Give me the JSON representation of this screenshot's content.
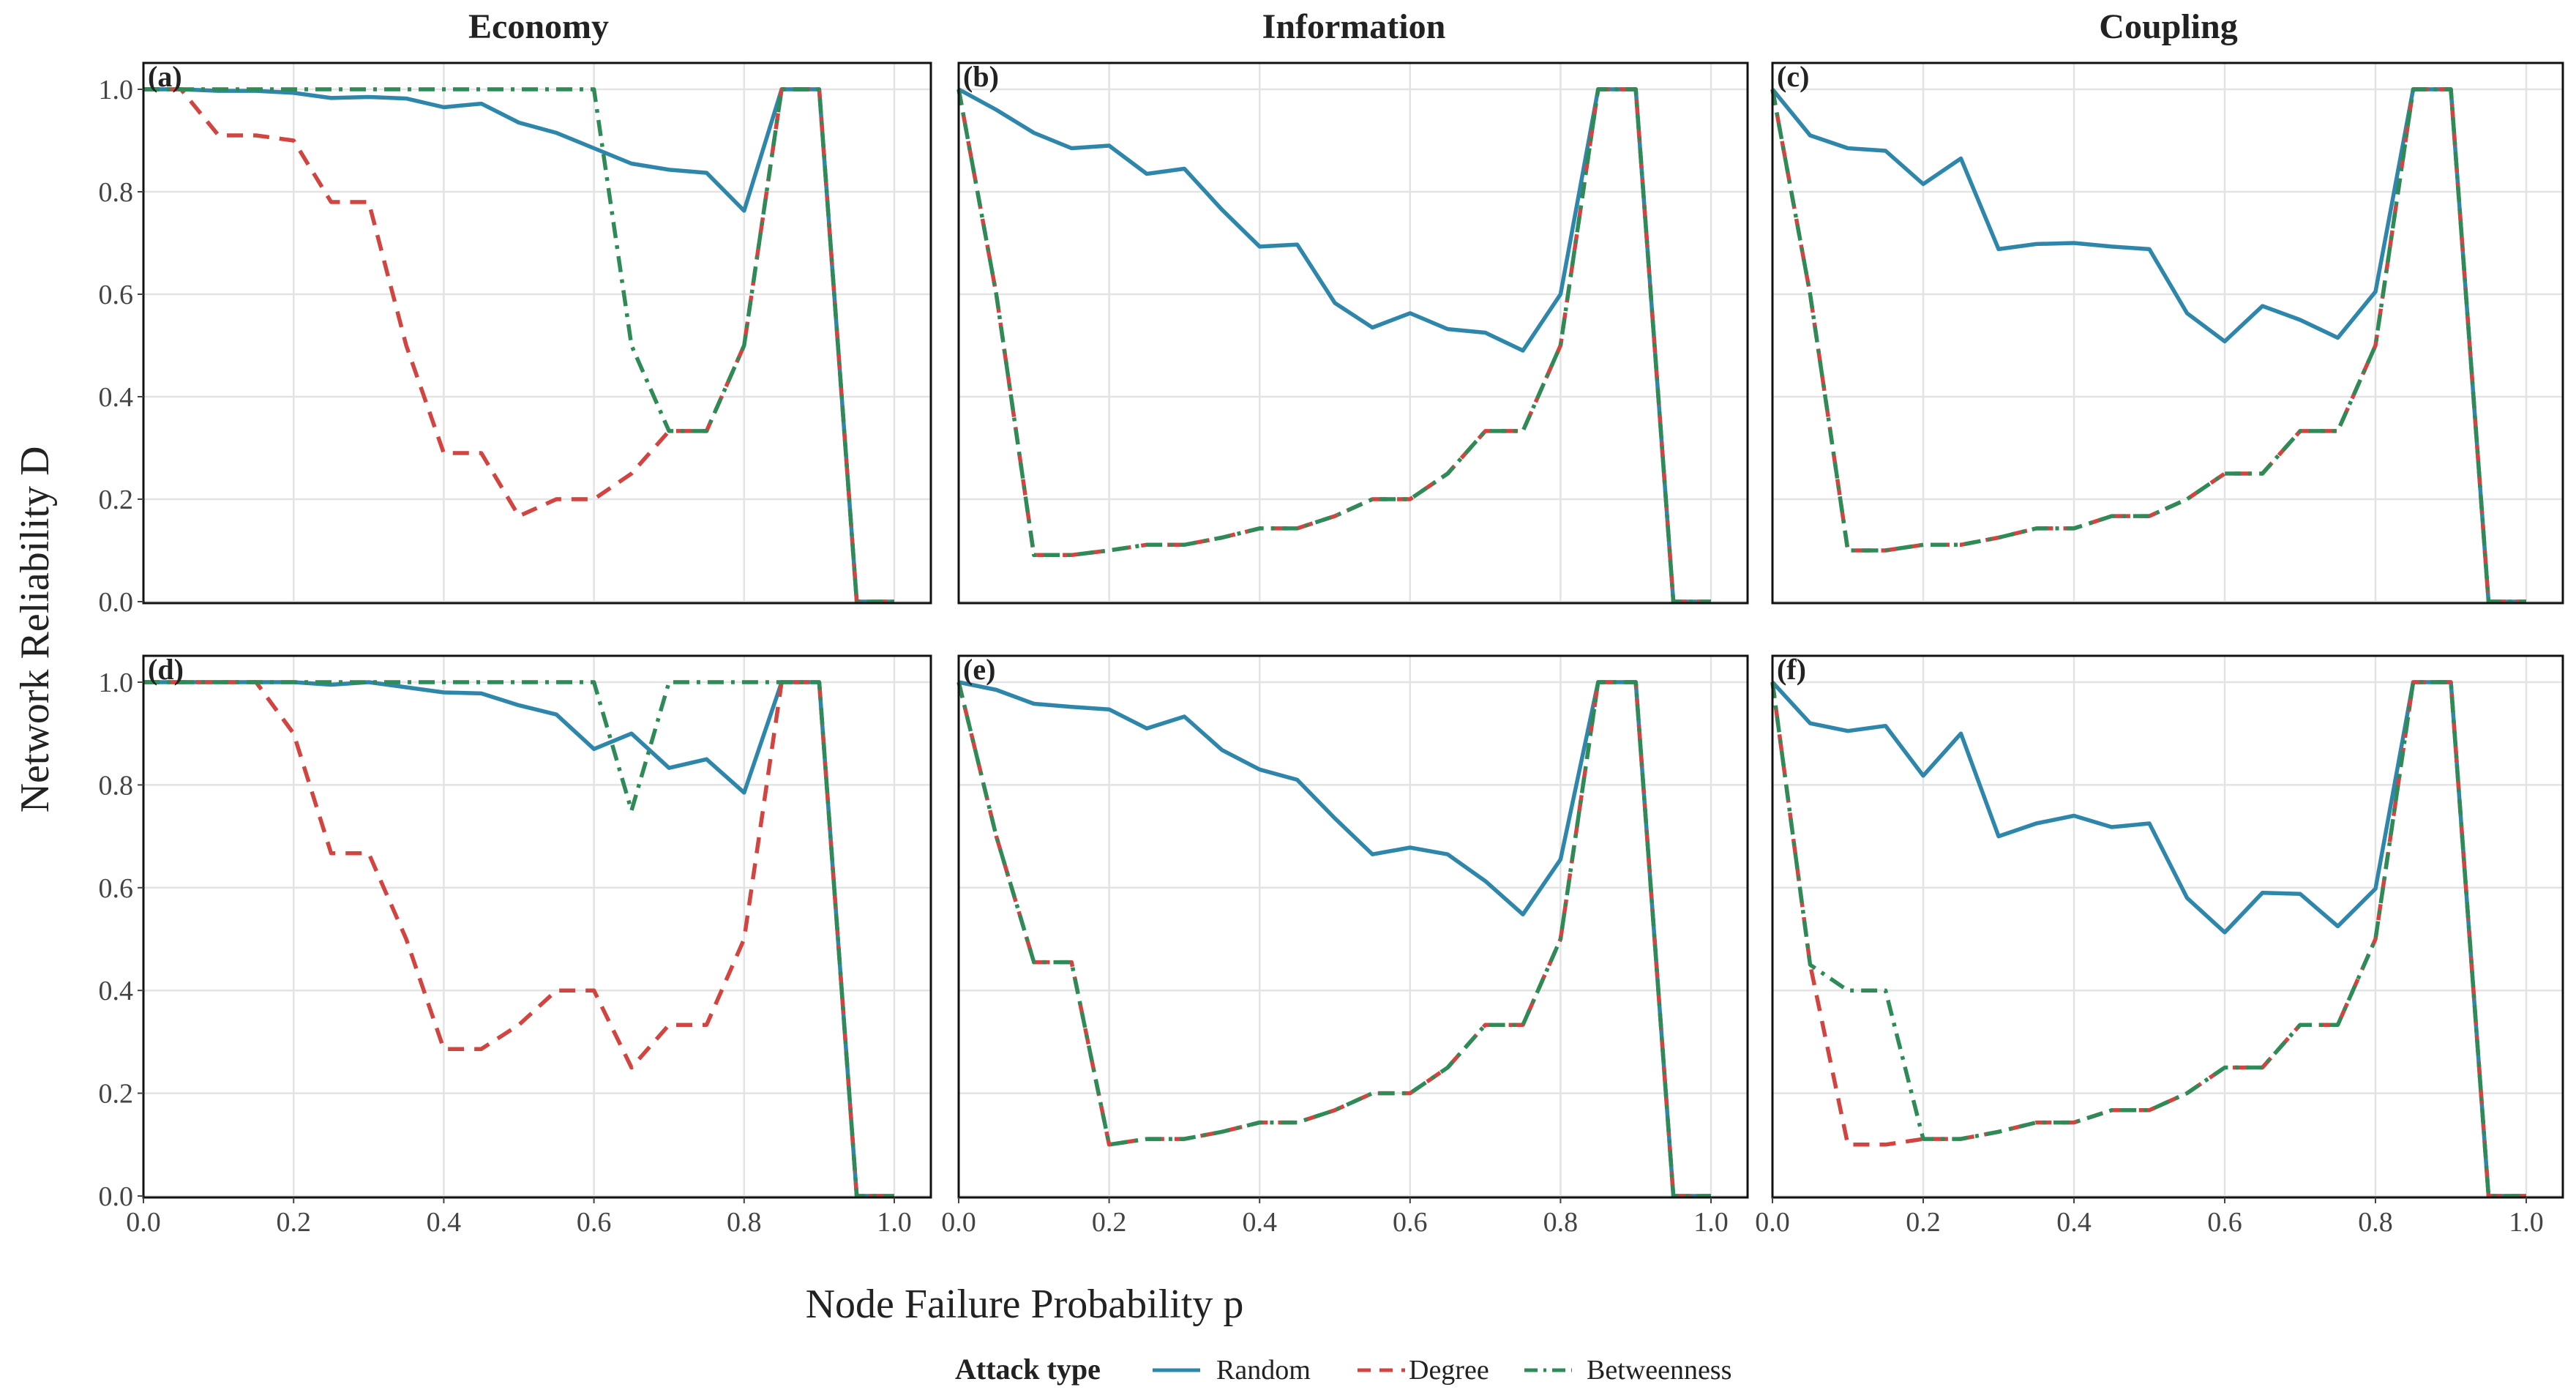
{
  "figure": {
    "ylabel": "Network Reliability D",
    "xlabel": "Node Failure Probability p",
    "legend": {
      "title": "Attack type",
      "entries": [
        {
          "key": "random",
          "label": "Random",
          "color": "#2E86AB",
          "style": "solid"
        },
        {
          "key": "degree",
          "label": "Degree",
          "color": "#D1443F",
          "style": "dashed"
        },
        {
          "key": "betweenness",
          "label": "Betweenness",
          "color": "#2E8B57",
          "style": "dashdot"
        }
      ]
    },
    "column_titles": [
      "Economy",
      "Information",
      "Coupling"
    ]
  },
  "chart_data": [
    {
      "type": "line",
      "panel": "(a)",
      "title": "Economy",
      "xlim": [
        0,
        1
      ],
      "ylim": [
        0,
        1
      ],
      "xticks": [
        0.0,
        0.2,
        0.4,
        0.6,
        0.8,
        1.0
      ],
      "yticks": [
        0.0,
        0.2,
        0.4,
        0.6,
        0.8,
        1.0
      ],
      "x": [
        0,
        0.05,
        0.1,
        0.15,
        0.2,
        0.25,
        0.3,
        0.35,
        0.4,
        0.45,
        0.5,
        0.55,
        0.6,
        0.65,
        0.7,
        0.75,
        0.8,
        0.85,
        0.9,
        0.95,
        1.0
      ],
      "series": [
        {
          "name": "Random",
          "values": [
            1.0,
            1.0,
            0.997,
            0.997,
            0.993,
            0.983,
            0.985,
            0.982,
            0.965,
            0.972,
            0.935,
            0.915,
            0.885,
            0.855,
            0.843,
            0.837,
            0.763,
            1.0,
            1.0,
            0.0,
            0.0
          ]
        },
        {
          "name": "Degree",
          "values": [
            1.0,
            1.0,
            0.91,
            0.91,
            0.9,
            0.78,
            0.78,
            0.5,
            0.29,
            0.29,
            0.167,
            0.2,
            0.2,
            0.25,
            0.333,
            0.333,
            0.5,
            1.0,
            1.0,
            0.0,
            0.0
          ]
        },
        {
          "name": "Betweenness",
          "values": [
            1.0,
            1.0,
            1.0,
            1.0,
            1.0,
            1.0,
            1.0,
            1.0,
            1.0,
            1.0,
            1.0,
            1.0,
            1.0,
            0.5,
            0.333,
            0.333,
            0.5,
            1.0,
            1.0,
            0.0,
            0.0
          ]
        }
      ]
    },
    {
      "type": "line",
      "panel": "(b)",
      "title": "Information",
      "xlim": [
        0,
        1
      ],
      "ylim": [
        0,
        1
      ],
      "xticks": [
        0.0,
        0.2,
        0.4,
        0.6,
        0.8,
        1.0
      ],
      "yticks": [
        0.0,
        0.2,
        0.4,
        0.6,
        0.8,
        1.0
      ],
      "x": [
        0,
        0.05,
        0.1,
        0.15,
        0.2,
        0.25,
        0.3,
        0.35,
        0.4,
        0.45,
        0.5,
        0.55,
        0.6,
        0.65,
        0.7,
        0.75,
        0.8,
        0.85,
        0.9,
        0.95,
        1.0
      ],
      "series": [
        {
          "name": "Random",
          "values": [
            1.0,
            0.96,
            0.915,
            0.885,
            0.89,
            0.835,
            0.845,
            0.765,
            0.693,
            0.697,
            0.583,
            0.535,
            0.563,
            0.532,
            0.525,
            0.49,
            0.6,
            1.0,
            1.0,
            0.0,
            0.0
          ]
        },
        {
          "name": "Degree",
          "values": [
            1.0,
            0.6,
            0.091,
            0.091,
            0.1,
            0.111,
            0.111,
            0.125,
            0.143,
            0.143,
            0.167,
            0.2,
            0.2,
            0.25,
            0.333,
            0.333,
            0.5,
            1.0,
            1.0,
            0.0,
            0.0
          ]
        },
        {
          "name": "Betweenness",
          "values": [
            1.0,
            0.6,
            0.091,
            0.091,
            0.1,
            0.111,
            0.111,
            0.125,
            0.143,
            0.143,
            0.167,
            0.2,
            0.2,
            0.25,
            0.333,
            0.333,
            0.5,
            1.0,
            1.0,
            0.0,
            0.0
          ]
        }
      ]
    },
    {
      "type": "line",
      "panel": "(c)",
      "title": "Coupling",
      "xlim": [
        0,
        1
      ],
      "ylim": [
        0,
        1
      ],
      "xticks": [
        0.0,
        0.2,
        0.4,
        0.6,
        0.8,
        1.0
      ],
      "yticks": [
        0.0,
        0.2,
        0.4,
        0.6,
        0.8,
        1.0
      ],
      "x": [
        0,
        0.05,
        0.1,
        0.15,
        0.2,
        0.25,
        0.3,
        0.35,
        0.4,
        0.45,
        0.5,
        0.55,
        0.6,
        0.65,
        0.7,
        0.75,
        0.8,
        0.85,
        0.9,
        0.95,
        1.0
      ],
      "series": [
        {
          "name": "Random",
          "values": [
            1.0,
            0.91,
            0.885,
            0.88,
            0.815,
            0.865,
            0.688,
            0.698,
            0.7,
            0.693,
            0.688,
            0.563,
            0.508,
            0.577,
            0.55,
            0.515,
            0.605,
            1.0,
            1.0,
            0.0,
            0.0
          ]
        },
        {
          "name": "Degree",
          "values": [
            1.0,
            0.6,
            0.1,
            0.1,
            0.111,
            0.111,
            0.125,
            0.143,
            0.143,
            0.167,
            0.167,
            0.2,
            0.25,
            0.25,
            0.333,
            0.333,
            0.5,
            1.0,
            1.0,
            0.0,
            0.0
          ]
        },
        {
          "name": "Betweenness",
          "values": [
            1.0,
            0.6,
            0.1,
            0.1,
            0.111,
            0.111,
            0.125,
            0.143,
            0.143,
            0.167,
            0.167,
            0.2,
            0.25,
            0.25,
            0.333,
            0.333,
            0.5,
            1.0,
            1.0,
            0.0,
            0.0
          ]
        }
      ]
    },
    {
      "type": "line",
      "panel": "(d)",
      "title": "",
      "xlim": [
        0,
        1
      ],
      "ylim": [
        0,
        1
      ],
      "xticks": [
        0.0,
        0.2,
        0.4,
        0.6,
        0.8,
        1.0
      ],
      "yticks": [
        0.0,
        0.2,
        0.4,
        0.6,
        0.8,
        1.0
      ],
      "x": [
        0,
        0.05,
        0.1,
        0.15,
        0.2,
        0.25,
        0.3,
        0.35,
        0.4,
        0.45,
        0.5,
        0.55,
        0.6,
        0.65,
        0.7,
        0.75,
        0.8,
        0.85,
        0.9,
        0.95,
        1.0
      ],
      "series": [
        {
          "name": "Random",
          "values": [
            1.0,
            1.0,
            1.0,
            1.0,
            1.0,
            0.995,
            1.0,
            0.99,
            0.98,
            0.978,
            0.955,
            0.937,
            0.87,
            0.9,
            0.833,
            0.85,
            0.785,
            1.0,
            1.0,
            0.0,
            0.0
          ]
        },
        {
          "name": "Degree",
          "values": [
            1.0,
            1.0,
            1.0,
            1.0,
            0.9,
            0.667,
            0.667,
            0.5,
            0.286,
            0.286,
            0.333,
            0.4,
            0.4,
            0.25,
            0.333,
            0.333,
            0.5,
            1.0,
            1.0,
            0.0,
            0.0
          ]
        },
        {
          "name": "Betweenness",
          "values": [
            1.0,
            1.0,
            1.0,
            1.0,
            1.0,
            1.0,
            1.0,
            1.0,
            1.0,
            1.0,
            1.0,
            1.0,
            1.0,
            0.75,
            1.0,
            1.0,
            1.0,
            1.0,
            1.0,
            0.0,
            0.0
          ]
        }
      ]
    },
    {
      "type": "line",
      "panel": "(e)",
      "title": "",
      "xlim": [
        0,
        1
      ],
      "ylim": [
        0,
        1
      ],
      "xticks": [
        0.0,
        0.2,
        0.4,
        0.6,
        0.8,
        1.0
      ],
      "yticks": [
        0.0,
        0.2,
        0.4,
        0.6,
        0.8,
        1.0
      ],
      "x": [
        0,
        0.05,
        0.1,
        0.15,
        0.2,
        0.25,
        0.3,
        0.35,
        0.4,
        0.45,
        0.5,
        0.55,
        0.6,
        0.65,
        0.7,
        0.75,
        0.8,
        0.85,
        0.9,
        0.95,
        1.0
      ],
      "series": [
        {
          "name": "Random",
          "values": [
            1.0,
            0.985,
            0.958,
            0.952,
            0.947,
            0.91,
            0.933,
            0.868,
            0.83,
            0.81,
            0.735,
            0.665,
            0.678,
            0.665,
            0.613,
            0.548,
            0.655,
            1.0,
            1.0,
            0.0,
            0.0
          ]
        },
        {
          "name": "Degree",
          "values": [
            1.0,
            0.7,
            0.455,
            0.455,
            0.1,
            0.111,
            0.111,
            0.125,
            0.143,
            0.143,
            0.167,
            0.2,
            0.2,
            0.25,
            0.333,
            0.333,
            0.5,
            1.0,
            1.0,
            0.0,
            0.0
          ]
        },
        {
          "name": "Betweenness",
          "values": [
            1.0,
            0.7,
            0.455,
            0.455,
            0.1,
            0.111,
            0.111,
            0.125,
            0.143,
            0.143,
            0.167,
            0.2,
            0.2,
            0.25,
            0.333,
            0.333,
            0.5,
            1.0,
            1.0,
            0.0,
            0.0
          ]
        }
      ]
    },
    {
      "type": "line",
      "panel": "(f)",
      "title": "",
      "xlim": [
        0,
        1
      ],
      "ylim": [
        0,
        1
      ],
      "xticks": [
        0.0,
        0.2,
        0.4,
        0.6,
        0.8,
        1.0
      ],
      "yticks": [
        0.0,
        0.2,
        0.4,
        0.6,
        0.8,
        1.0
      ],
      "x": [
        0,
        0.05,
        0.1,
        0.15,
        0.2,
        0.25,
        0.3,
        0.35,
        0.4,
        0.45,
        0.5,
        0.55,
        0.6,
        0.65,
        0.7,
        0.75,
        0.8,
        0.85,
        0.9,
        0.95,
        1.0
      ],
      "series": [
        {
          "name": "Random",
          "values": [
            1.0,
            0.92,
            0.905,
            0.915,
            0.818,
            0.9,
            0.7,
            0.725,
            0.74,
            0.718,
            0.725,
            0.58,
            0.513,
            0.59,
            0.588,
            0.525,
            0.598,
            1.0,
            1.0,
            0.0,
            0.0
          ]
        },
        {
          "name": "Degree",
          "values": [
            1.0,
            0.45,
            0.1,
            0.1,
            0.111,
            0.111,
            0.125,
            0.143,
            0.143,
            0.167,
            0.167,
            0.2,
            0.25,
            0.25,
            0.333,
            0.333,
            0.5,
            1.0,
            1.0,
            0.0,
            0.0
          ]
        },
        {
          "name": "Betweenness",
          "values": [
            1.0,
            0.45,
            0.4,
            0.4,
            0.111,
            0.111,
            0.125,
            0.143,
            0.143,
            0.167,
            0.167,
            0.2,
            0.25,
            0.25,
            0.333,
            0.333,
            0.5,
            1.0,
            1.0,
            0.0,
            0.0
          ]
        }
      ]
    }
  ]
}
